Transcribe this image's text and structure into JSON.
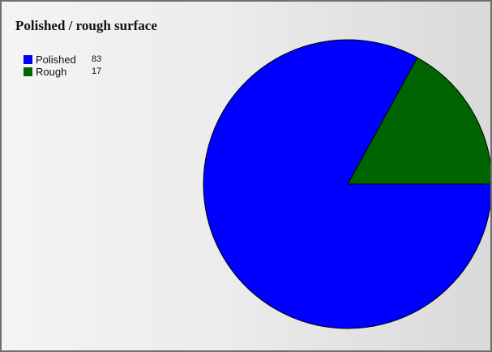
{
  "chart_data": {
    "type": "pie",
    "title": "Polished / rough surface",
    "legend_position": "top-left",
    "slices": [
      {
        "label": "Polished",
        "value": 83,
        "color": "#0000ff"
      },
      {
        "label": "Rough",
        "value": 17,
        "color": "#006400"
      }
    ]
  }
}
